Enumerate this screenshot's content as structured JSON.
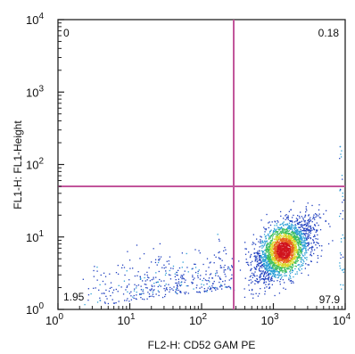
{
  "chart_data": {
    "type": "scatter",
    "title": "",
    "xlabel": "FL2-H: CD52 GAM PE",
    "ylabel": "FL1-H:  FL1-Height",
    "x_scale": "log",
    "y_scale": "log",
    "xlim": [
      1,
      10000
    ],
    "ylim": [
      1,
      10000
    ],
    "x_ticks": [
      {
        "base": "10",
        "exp": "0"
      },
      {
        "base": "10",
        "exp": "1"
      },
      {
        "base": "10",
        "exp": "2"
      },
      {
        "base": "10",
        "exp": "3"
      },
      {
        "base": "10",
        "exp": "4"
      }
    ],
    "y_ticks": [
      {
        "base": "10",
        "exp": "0"
      },
      {
        "base": "10",
        "exp": "1"
      },
      {
        "base": "10",
        "exp": "2"
      },
      {
        "base": "10",
        "exp": "3"
      },
      {
        "base": "10",
        "exp": "4"
      }
    ],
    "gates": {
      "x": 280,
      "y": 50
    },
    "gate_color": "#c2559b",
    "quadrants": {
      "upper_left": "0",
      "upper_right": "0.18",
      "lower_left": "1.95",
      "lower_right": "97.9"
    },
    "main_population": {
      "x_center": 1400,
      "y_center": 6.5
    },
    "density_colors": [
      "#1f3fbf",
      "#2a9fd6",
      "#3fbf5f",
      "#d8d82a",
      "#e8641e",
      "#d0141e"
    ],
    "grid": false,
    "legend": "none"
  }
}
